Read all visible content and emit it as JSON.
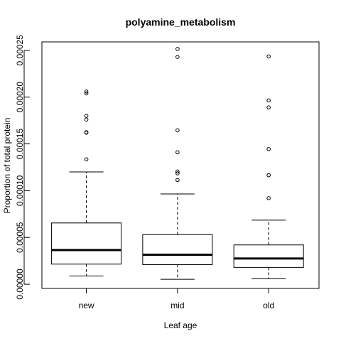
{
  "chart_data": {
    "type": "box",
    "title": "polyamine_metabolism",
    "xlabel": "Leaf age",
    "ylabel": "Proportion of total protein",
    "categories": [
      "new",
      "mid",
      "old"
    ],
    "y_ticks": [
      0.0,
      5e-05,
      0.0001,
      0.00015,
      0.0002,
      0.00025
    ],
    "y_tick_labels": [
      "0.00000",
      "0.00005",
      "0.00010",
      "0.00015",
      "0.00020",
      "0.00025"
    ],
    "ylim": [
      -4.5e-06,
      0.000259
    ],
    "grid": false,
    "boxes": [
      {
        "category": "new",
        "whisker_low": 8.8e-06,
        "q1": 2.15e-05,
        "median": 3.65e-05,
        "q3": 6.55e-05,
        "whisker_high": 0.00012,
        "outliers": [
          0.0001335,
          0.000162,
          0.0001625,
          0.000176,
          0.00018,
          0.000204,
          0.000206
        ]
      },
      {
        "category": "mid",
        "whisker_low": 5.3e-06,
        "q1": 2.1e-05,
        "median": 3.15e-05,
        "q3": 5.3e-05,
        "whisker_high": 9.65e-05,
        "outliers": [
          0.0001115,
          0.0001185,
          0.0001205,
          0.000141,
          0.0001645,
          0.000243,
          0.0002515
        ]
      },
      {
        "category": "old",
        "whisker_low": 5.8e-06,
        "q1": 1.8e-05,
        "median": 2.75e-05,
        "q3": 4.2e-05,
        "whisker_high": 6.85e-05,
        "outliers": [
          9.2e-05,
          0.0001165,
          0.0001445,
          0.000189,
          0.0001965,
          0.0002435
        ]
      }
    ]
  }
}
